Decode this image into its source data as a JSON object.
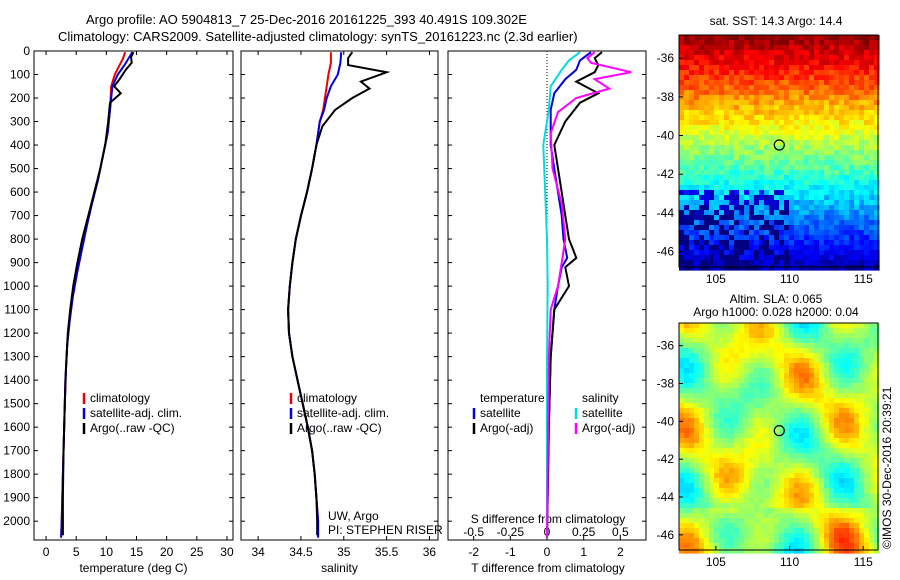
{
  "header": {
    "line1": "Argo profile: AO 5904813_7 25-Dec-2016 20161225_393 40.491S 109.302E",
    "line2": "Climatology: CARS2009. Satellite-adjusted climatology: synTS_20161223.nc (2.3d earlier)"
  },
  "watermark": "©IMOS 30-Dec-2016 20:39:21",
  "colors": {
    "climatology": "#ee0000",
    "satellite": "#0000dd",
    "argo": "#000000",
    "sat_salinity": "#00dddd",
    "argo_salinity": "#ff00ff"
  },
  "chart_data": [
    {
      "type": "line",
      "id": "temperature",
      "xlabel": "temperature (deg C)",
      "ylabel": "",
      "xlim": [
        -2,
        31
      ],
      "ylim": [
        2080,
        0
      ],
      "y_reversed": true,
      "xticks": [
        "0",
        "5",
        "10",
        "15",
        "20",
        "25",
        "30"
      ],
      "yticks": [
        "0",
        "100",
        "200",
        "300",
        "400",
        "500",
        "600",
        "700",
        "800",
        "900",
        "1000",
        "1100",
        "1200",
        "1300",
        "1400",
        "1500",
        "1600",
        "1700",
        "1800",
        "1900",
        "2000"
      ],
      "legend": [
        "climatology",
        "satellite-adj. clim.",
        "Argo(..raw -QC)"
      ],
      "series": [
        {
          "name": "climatology",
          "color": "#ee0000",
          "points": [
            [
              13.1,
              5
            ],
            [
              12.8,
              30
            ],
            [
              12.2,
              60
            ],
            [
              11.4,
              100
            ],
            [
              10.8,
              150
            ],
            [
              10.6,
              250
            ],
            [
              10.2,
              350
            ],
            [
              9.4,
              450
            ],
            [
              8.6,
              550
            ],
            [
              7.6,
              650
            ],
            [
              6.7,
              750
            ],
            [
              5.9,
              850
            ],
            [
              5.1,
              950
            ],
            [
              4.4,
              1050
            ],
            [
              3.9,
              1150
            ],
            [
              3.5,
              1250
            ],
            [
              3.2,
              1400
            ],
            [
              3.0,
              1600
            ],
            [
              2.8,
              1800
            ],
            [
              2.6,
              2000
            ],
            [
              2.5,
              2070
            ]
          ]
        },
        {
          "name": "satellite-adj. clim.",
          "points": [
            [
              14.3,
              5
            ],
            [
              13.7,
              30
            ],
            [
              13.0,
              60
            ],
            [
              11.9,
              100
            ],
            [
              11.0,
              150
            ],
            [
              10.6,
              250
            ],
            [
              10.2,
              350
            ],
            [
              9.4,
              450
            ],
            [
              8.6,
              550
            ],
            [
              7.6,
              650
            ],
            [
              6.7,
              750
            ],
            [
              5.9,
              850
            ],
            [
              5.1,
              950
            ],
            [
              4.4,
              1050
            ],
            [
              3.9,
              1150
            ],
            [
              3.5,
              1250
            ],
            [
              3.2,
              1400
            ],
            [
              3.0,
              1600
            ],
            [
              2.8,
              1800
            ],
            [
              2.6,
              2000
            ],
            [
              2.5,
              2070
            ]
          ]
        },
        {
          "name": "Argo(..raw -QC)",
          "points": [
            [
              14.5,
              5
            ],
            [
              14.1,
              25
            ],
            [
              14.2,
              50
            ],
            [
              13.2,
              80
            ],
            [
              12.2,
              120
            ],
            [
              11.3,
              150
            ],
            [
              12.4,
              180
            ],
            [
              10.6,
              220
            ],
            [
              10.3,
              300
            ],
            [
              9.8,
              400
            ],
            [
              9.0,
              500
            ],
            [
              8.0,
              600
            ],
            [
              7.0,
              700
            ],
            [
              6.0,
              800
            ],
            [
              5.2,
              900
            ],
            [
              4.5,
              1000
            ],
            [
              4.0,
              1100
            ],
            [
              3.6,
              1200
            ],
            [
              3.3,
              1350
            ],
            [
              3.1,
              1500
            ],
            [
              2.9,
              1700
            ],
            [
              2.8,
              1900
            ],
            [
              2.8,
              2060
            ]
          ]
        }
      ]
    },
    {
      "type": "line",
      "id": "salinity",
      "xlabel": "salinity",
      "ylabel": "",
      "xlim": [
        33.8,
        36.1
      ],
      "ylim": [
        2080,
        0
      ],
      "y_reversed": true,
      "xticks": [
        "34",
        "34.5",
        "35",
        "35.5",
        "36"
      ],
      "legend": [
        "climatology",
        "satellite-adj. clim.",
        "Argo(..raw -QC)"
      ],
      "annotation": [
        "UW, Argo",
        "PI: STEPHEN RISER"
      ],
      "series": [
        {
          "name": "climatology",
          "points": [
            [
              34.85,
              5
            ],
            [
              34.85,
              50
            ],
            [
              34.82,
              100
            ],
            [
              34.8,
              150
            ],
            [
              34.78,
              200
            ],
            [
              34.76,
              250
            ],
            [
              34.72,
              300
            ],
            [
              34.68,
              400
            ],
            [
              34.63,
              500
            ],
            [
              34.57,
              600
            ],
            [
              34.5,
              700
            ],
            [
              34.44,
              800
            ],
            [
              34.4,
              900
            ],
            [
              34.37,
              1000
            ],
            [
              34.35,
              1100
            ],
            [
              34.36,
              1200
            ],
            [
              34.4,
              1300
            ],
            [
              34.46,
              1400
            ],
            [
              34.52,
              1500
            ],
            [
              34.58,
              1600
            ],
            [
              34.63,
              1700
            ],
            [
              34.66,
              1800
            ],
            [
              34.68,
              1900
            ],
            [
              34.7,
              2000
            ],
            [
              34.7,
              2070
            ]
          ]
        },
        {
          "name": "satellite-adj. clim.",
          "points": [
            [
              34.97,
              5
            ],
            [
              34.96,
              50
            ],
            [
              34.93,
              100
            ],
            [
              34.85,
              150
            ],
            [
              34.8,
              200
            ],
            [
              34.77,
              250
            ],
            [
              34.72,
              300
            ],
            [
              34.68,
              400
            ],
            [
              34.63,
              500
            ],
            [
              34.57,
              600
            ],
            [
              34.5,
              700
            ],
            [
              34.44,
              800
            ],
            [
              34.4,
              900
            ],
            [
              34.37,
              1000
            ],
            [
              34.35,
              1100
            ],
            [
              34.36,
              1200
            ],
            [
              34.4,
              1300
            ],
            [
              34.46,
              1400
            ],
            [
              34.52,
              1500
            ],
            [
              34.58,
              1600
            ],
            [
              34.63,
              1700
            ],
            [
              34.66,
              1800
            ],
            [
              34.68,
              1900
            ],
            [
              34.7,
              2000
            ],
            [
              34.7,
              2070
            ]
          ]
        },
        {
          "name": "Argo(..raw -QC)",
          "points": [
            [
              35.1,
              5
            ],
            [
              35.05,
              30
            ],
            [
              35.05,
              60
            ],
            [
              35.5,
              90
            ],
            [
              35.2,
              130
            ],
            [
              35.3,
              160
            ],
            [
              35.1,
              200
            ],
            [
              34.9,
              250
            ],
            [
              34.75,
              320
            ],
            [
              34.68,
              400
            ],
            [
              34.63,
              500
            ],
            [
              34.57,
              600
            ],
            [
              34.5,
              700
            ],
            [
              34.44,
              800
            ],
            [
              34.4,
              900
            ],
            [
              34.37,
              1000
            ],
            [
              34.35,
              1100
            ],
            [
              34.36,
              1200
            ],
            [
              34.4,
              1300
            ],
            [
              34.46,
              1400
            ],
            [
              34.52,
              1500
            ],
            [
              34.58,
              1600
            ],
            [
              34.63,
              1700
            ],
            [
              34.66,
              1800
            ],
            [
              34.68,
              1900
            ],
            [
              34.69,
              2000
            ],
            [
              34.69,
              2060
            ]
          ]
        }
      ]
    },
    {
      "type": "line",
      "id": "difference",
      "xlabel": "T difference from climatology",
      "x2label": "S difference from climatology",
      "xlim": [
        -2.7,
        2.7
      ],
      "ylim": [
        2080,
        0
      ],
      "y_reversed": true,
      "xticks": [
        "-2",
        "-1",
        "0",
        "1",
        "2"
      ],
      "x2ticks": [
        "-0.5",
        "-0.25",
        "0",
        "0.25",
        "0.5"
      ],
      "legend_t": [
        "temperature",
        "satellite",
        "Argo(-adj)"
      ],
      "legend_s": [
        "salinity",
        "satellite",
        "Argo(-adj)"
      ],
      "series": [
        {
          "name": "T satellite",
          "points": [
            [
              1.2,
              5
            ],
            [
              0.9,
              40
            ],
            [
              0.8,
              80
            ],
            [
              0.5,
              120
            ],
            [
              0.2,
              180
            ],
            [
              0.1,
              250
            ],
            [
              0.1,
              400
            ],
            [
              0.2,
              500
            ],
            [
              0.3,
              600
            ],
            [
              0.4,
              700
            ],
            [
              0.45,
              800
            ],
            [
              0.55,
              880
            ],
            [
              0.4,
              920
            ],
            [
              0.3,
              1000
            ],
            [
              0.2,
              1100
            ],
            [
              0.1,
              1300
            ],
            [
              0.05,
              1600
            ],
            [
              0.0,
              2070
            ]
          ]
        },
        {
          "name": "T Argo(-adj)",
          "points": [
            [
              1.5,
              5
            ],
            [
              1.3,
              30
            ],
            [
              1.4,
              60
            ],
            [
              1.3,
              90
            ],
            [
              0.8,
              130
            ],
            [
              1.4,
              180
            ],
            [
              0.9,
              220
            ],
            [
              0.5,
              300
            ],
            [
              0.2,
              400
            ],
            [
              0.3,
              500
            ],
            [
              0.4,
              600
            ],
            [
              0.5,
              700
            ],
            [
              0.6,
              800
            ],
            [
              0.8,
              880
            ],
            [
              0.5,
              920
            ],
            [
              0.6,
              1000
            ],
            [
              0.2,
              1100
            ],
            [
              0.1,
              1300
            ],
            [
              0.05,
              1600
            ],
            [
              0.0,
              2070
            ]
          ]
        },
        {
          "name": "S satellite",
          "points": [
            [
              0.9,
              5
            ],
            [
              0.6,
              40
            ],
            [
              0.4,
              80
            ],
            [
              0.1,
              150
            ],
            [
              0.05,
              250
            ],
            [
              -0.1,
              400
            ],
            [
              -0.05,
              600
            ],
            [
              0.0,
              800
            ],
            [
              0.02,
              1000
            ],
            [
              0.0,
              1300
            ],
            [
              0.0,
              2070
            ]
          ]
        },
        {
          "name": "S Argo(-adj)",
          "points": [
            [
              1.3,
              5
            ],
            [
              1.1,
              30
            ],
            [
              1.2,
              50
            ],
            [
              2.3,
              90
            ],
            [
              1.3,
              120
            ],
            [
              1.7,
              160
            ],
            [
              0.8,
              200
            ],
            [
              0.3,
              260
            ],
            [
              0.1,
              350
            ],
            [
              0.15,
              500
            ],
            [
              0.4,
              650
            ],
            [
              0.5,
              800
            ],
            [
              0.4,
              900
            ],
            [
              0.3,
              1000
            ],
            [
              0.1,
              1100
            ],
            [
              0.05,
              1300
            ],
            [
              0.0,
              2070
            ]
          ]
        }
      ]
    },
    {
      "type": "heatmap",
      "id": "sst_map",
      "title": "sat. SST: 14.3 Argo: 14.4",
      "xlim": [
        102.5,
        116
      ],
      "ylim": [
        -46.8,
        -34.8
      ],
      "xticks": [
        "105",
        "110",
        "115"
      ],
      "yticks": [
        "-36",
        "-38",
        "-40",
        "-42",
        "-44",
        "-46"
      ],
      "marker": {
        "lon": 109.302,
        "lat": -40.491
      }
    },
    {
      "type": "heatmap",
      "id": "sla_map",
      "title": "Altim. SLA: 0.065",
      "subtitle": "Argo h1000: 0.028 h2000: 0.04",
      "xlim": [
        102.5,
        116
      ],
      "ylim": [
        -46.8,
        -34.8
      ],
      "xticks": [
        "105",
        "110",
        "115"
      ],
      "yticks": [
        "-36",
        "-38",
        "-40",
        "-42",
        "-44",
        "-46"
      ],
      "marker": {
        "lon": 109.302,
        "lat": -40.491
      }
    }
  ]
}
